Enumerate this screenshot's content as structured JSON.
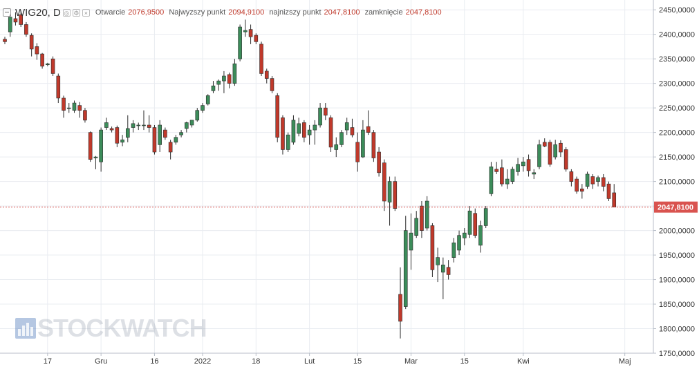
{
  "header": {
    "symbol": "WIG20, D",
    "open_label": "Otwarcie",
    "open_value": "2076,9500",
    "high_label": "Najwyzszy punkt",
    "high_value": "2094,9100",
    "low_label": "najnizszy punkt",
    "low_value": "2047,8100",
    "close_label": "zamknięcie",
    "close_value": "2047,8100"
  },
  "watermark": {
    "text": "STOCKWATCH"
  },
  "colors": {
    "up": "#3c8c5a",
    "down": "#c0392b",
    "last_price": "#d9534f",
    "grid": "#e9ecf1"
  },
  "chart_data": {
    "type": "candlestick",
    "ylim": [
      1750,
      2470
    ],
    "y_ticks": [
      "1750,0000",
      "1800,0000",
      "1850,0000",
      "1900,0000",
      "1950,0000",
      "2000,0000",
      "2050,0000",
      "2100,0000",
      "2150,0000",
      "2200,0000",
      "2250,0000",
      "2300,0000",
      "2350,0000",
      "2400,0000",
      "2450,0000"
    ],
    "y_tick_values": [
      1750,
      1800,
      1850,
      1900,
      1950,
      2000,
      2050,
      2100,
      2150,
      2200,
      2250,
      2300,
      2350,
      2400,
      2450
    ],
    "x_labels": [
      "17",
      "Gru",
      "16",
      "2022",
      "18",
      "Lut",
      "15",
      "Mar",
      "15",
      "Kwi",
      "Maj"
    ],
    "x_label_index": [
      8,
      18,
      28,
      37,
      47,
      57,
      66,
      76,
      86,
      97,
      116
    ],
    "last_price": 2047.81,
    "last_price_label": "2047,8100",
    "candles": [
      {
        "o": 2390,
        "h": 2395,
        "l": 2380,
        "c": 2385
      },
      {
        "o": 2405,
        "h": 2440,
        "l": 2395,
        "c": 2435
      },
      {
        "o": 2432,
        "h": 2445,
        "l": 2418,
        "c": 2425
      },
      {
        "o": 2440,
        "h": 2448,
        "l": 2415,
        "c": 2420
      },
      {
        "o": 2420,
        "h": 2425,
        "l": 2395,
        "c": 2400
      },
      {
        "o": 2398,
        "h": 2402,
        "l": 2355,
        "c": 2370
      },
      {
        "o": 2375,
        "h": 2382,
        "l": 2348,
        "c": 2360
      },
      {
        "o": 2360,
        "h": 2362,
        "l": 2330,
        "c": 2335
      },
      {
        "o": 2338,
        "h": 2342,
        "l": 2335,
        "c": 2340
      },
      {
        "o": 2350,
        "h": 2355,
        "l": 2315,
        "c": 2320
      },
      {
        "o": 2315,
        "h": 2320,
        "l": 2260,
        "c": 2270
      },
      {
        "o": 2270,
        "h": 2275,
        "l": 2230,
        "c": 2245
      },
      {
        "o": 2250,
        "h": 2260,
        "l": 2240,
        "c": 2250
      },
      {
        "o": 2245,
        "h": 2265,
        "l": 2240,
        "c": 2260
      },
      {
        "o": 2255,
        "h": 2262,
        "l": 2230,
        "c": 2245
      },
      {
        "o": 2245,
        "h": 2250,
        "l": 2220,
        "c": 2225
      },
      {
        "o": 2200,
        "h": 2202,
        "l": 2140,
        "c": 2145
      },
      {
        "o": 2148,
        "h": 2152,
        "l": 2125,
        "c": 2150
      },
      {
        "o": 2140,
        "h": 2210,
        "l": 2120,
        "c": 2205
      },
      {
        "o": 2210,
        "h": 2230,
        "l": 2205,
        "c": 2220
      },
      {
        "o": 2208,
        "h": 2212,
        "l": 2200,
        "c": 2205
      },
      {
        "o": 2210,
        "h": 2214,
        "l": 2170,
        "c": 2178
      },
      {
        "o": 2180,
        "h": 2195,
        "l": 2172,
        "c": 2185
      },
      {
        "o": 2190,
        "h": 2235,
        "l": 2180,
        "c": 2208
      },
      {
        "o": 2210,
        "h": 2225,
        "l": 2200,
        "c": 2218
      },
      {
        "o": 2215,
        "h": 2220,
        "l": 2205,
        "c": 2215
      },
      {
        "o": 2215,
        "h": 2245,
        "l": 2205,
        "c": 2215
      },
      {
        "o": 2215,
        "h": 2235,
        "l": 2200,
        "c": 2210
      },
      {
        "o": 2210,
        "h": 2215,
        "l": 2155,
        "c": 2160
      },
      {
        "o": 2175,
        "h": 2225,
        "l": 2160,
        "c": 2215
      },
      {
        "o": 2205,
        "h": 2210,
        "l": 2185,
        "c": 2190
      },
      {
        "o": 2180,
        "h": 2185,
        "l": 2145,
        "c": 2160
      },
      {
        "o": 2180,
        "h": 2195,
        "l": 2175,
        "c": 2190
      },
      {
        "o": 2195,
        "h": 2205,
        "l": 2190,
        "c": 2200
      },
      {
        "o": 2208,
        "h": 2222,
        "l": 2200,
        "c": 2220
      },
      {
        "o": 2215,
        "h": 2225,
        "l": 2210,
        "c": 2225
      },
      {
        "o": 2225,
        "h": 2250,
        "l": 2222,
        "c": 2245
      },
      {
        "o": 2245,
        "h": 2260,
        "l": 2240,
        "c": 2255
      },
      {
        "o": 2258,
        "h": 2278,
        "l": 2255,
        "c": 2275
      },
      {
        "o": 2285,
        "h": 2305,
        "l": 2280,
        "c": 2295
      },
      {
        "o": 2298,
        "h": 2308,
        "l": 2285,
        "c": 2305
      },
      {
        "o": 2305,
        "h": 2325,
        "l": 2280,
        "c": 2315
      },
      {
        "o": 2318,
        "h": 2322,
        "l": 2290,
        "c": 2300
      },
      {
        "o": 2300,
        "h": 2350,
        "l": 2295,
        "c": 2340
      },
      {
        "o": 2350,
        "h": 2420,
        "l": 2345,
        "c": 2415
      },
      {
        "o": 2405,
        "h": 2430,
        "l": 2395,
        "c": 2408
      },
      {
        "o": 2410,
        "h": 2420,
        "l": 2380,
        "c": 2395
      },
      {
        "o": 2398,
        "h": 2402,
        "l": 2380,
        "c": 2385
      },
      {
        "o": 2380,
        "h": 2385,
        "l": 2315,
        "c": 2320
      },
      {
        "o": 2325,
        "h": 2330,
        "l": 2300,
        "c": 2310
      },
      {
        "o": 2310,
        "h": 2315,
        "l": 2280,
        "c": 2285
      },
      {
        "o": 2275,
        "h": 2280,
        "l": 2180,
        "c": 2190
      },
      {
        "o": 2230,
        "h": 2235,
        "l": 2155,
        "c": 2165
      },
      {
        "o": 2165,
        "h": 2200,
        "l": 2160,
        "c": 2195
      },
      {
        "o": 2180,
        "h": 2235,
        "l": 2175,
        "c": 2225
      },
      {
        "o": 2198,
        "h": 2230,
        "l": 2192,
        "c": 2218
      },
      {
        "o": 2220,
        "h": 2225,
        "l": 2180,
        "c": 2190
      },
      {
        "o": 2195,
        "h": 2215,
        "l": 2175,
        "c": 2205
      },
      {
        "o": 2205,
        "h": 2225,
        "l": 2175,
        "c": 2215
      },
      {
        "o": 2215,
        "h": 2260,
        "l": 2210,
        "c": 2250
      },
      {
        "o": 2250,
        "h": 2260,
        "l": 2225,
        "c": 2235
      },
      {
        "o": 2230,
        "h": 2235,
        "l": 2160,
        "c": 2170
      },
      {
        "o": 2165,
        "h": 2190,
        "l": 2150,
        "c": 2175
      },
      {
        "o": 2175,
        "h": 2205,
        "l": 2170,
        "c": 2200
      },
      {
        "o": 2205,
        "h": 2230,
        "l": 2195,
        "c": 2220
      },
      {
        "o": 2210,
        "h": 2228,
        "l": 2190,
        "c": 2195
      },
      {
        "o": 2180,
        "h": 2200,
        "l": 2120,
        "c": 2140
      },
      {
        "o": 2150,
        "h": 2225,
        "l": 2148,
        "c": 2205
      },
      {
        "o": 2212,
        "h": 2245,
        "l": 2195,
        "c": 2200
      },
      {
        "o": 2200,
        "h": 2205,
        "l": 2140,
        "c": 2148
      },
      {
        "o": 2160,
        "h": 2170,
        "l": 2110,
        "c": 2118
      },
      {
        "o": 2138,
        "h": 2145,
        "l": 2040,
        "c": 2060
      },
      {
        "o": 2058,
        "h": 2110,
        "l": 2010,
        "c": 2100
      },
      {
        "o": 2100,
        "h": 2110,
        "l": 2040,
        "c": 2045
      },
      {
        "o": 1870,
        "h": 1925,
        "l": 1780,
        "c": 1815
      },
      {
        "o": 1845,
        "h": 2030,
        "l": 1840,
        "c": 2000
      },
      {
        "o": 1960,
        "h": 2035,
        "l": 1920,
        "c": 1995
      },
      {
        "o": 1990,
        "h": 2040,
        "l": 1985,
        "c": 2025
      },
      {
        "o": 2050,
        "h": 2060,
        "l": 1985,
        "c": 2000
      },
      {
        "o": 2005,
        "h": 2070,
        "l": 2000,
        "c": 2060
      },
      {
        "o": 2010,
        "h": 2015,
        "l": 1905,
        "c": 1920
      },
      {
        "o": 1930,
        "h": 1965,
        "l": 1895,
        "c": 1945
      },
      {
        "o": 1915,
        "h": 1945,
        "l": 1860,
        "c": 1930
      },
      {
        "o": 1925,
        "h": 1940,
        "l": 1900,
        "c": 1910
      },
      {
        "o": 1945,
        "h": 1985,
        "l": 1935,
        "c": 1975
      },
      {
        "o": 1960,
        "h": 2000,
        "l": 1950,
        "c": 1990
      },
      {
        "o": 1985,
        "h": 2005,
        "l": 1970,
        "c": 1995
      },
      {
        "o": 1992,
        "h": 2050,
        "l": 1985,
        "c": 2040
      },
      {
        "o": 2035,
        "h": 2045,
        "l": 1985,
        "c": 1990
      },
      {
        "o": 1970,
        "h": 2020,
        "l": 1955,
        "c": 2010
      },
      {
        "o": 2010,
        "h": 2050,
        "l": 2005,
        "c": 2045
      },
      {
        "o": 2075,
        "h": 2140,
        "l": 2070,
        "c": 2130
      },
      {
        "o": 2125,
        "h": 2140,
        "l": 2115,
        "c": 2120
      },
      {
        "o": 2128,
        "h": 2145,
        "l": 2090,
        "c": 2095
      },
      {
        "o": 2095,
        "h": 2125,
        "l": 2085,
        "c": 2105
      },
      {
        "o": 2100,
        "h": 2130,
        "l": 2095,
        "c": 2125
      },
      {
        "o": 2120,
        "h": 2148,
        "l": 2112,
        "c": 2135
      },
      {
        "o": 2132,
        "h": 2150,
        "l": 2120,
        "c": 2140
      },
      {
        "o": 2145,
        "h": 2155,
        "l": 2110,
        "c": 2122
      },
      {
        "o": 2115,
        "h": 2125,
        "l": 2105,
        "c": 2118
      },
      {
        "o": 2130,
        "h": 2185,
        "l": 2125,
        "c": 2175
      },
      {
        "o": 2180,
        "h": 2188,
        "l": 2170,
        "c": 2172
      },
      {
        "o": 2180,
        "h": 2185,
        "l": 2130,
        "c": 2135
      },
      {
        "o": 2150,
        "h": 2185,
        "l": 2145,
        "c": 2175
      },
      {
        "o": 2178,
        "h": 2184,
        "l": 2150,
        "c": 2160
      },
      {
        "o": 2165,
        "h": 2170,
        "l": 2120,
        "c": 2125
      },
      {
        "o": 2120,
        "h": 2125,
        "l": 2090,
        "c": 2100
      },
      {
        "o": 2105,
        "h": 2110,
        "l": 2075,
        "c": 2080
      },
      {
        "o": 2085,
        "h": 2095,
        "l": 2065,
        "c": 2080
      },
      {
        "o": 2090,
        "h": 2120,
        "l": 2085,
        "c": 2115
      },
      {
        "o": 2110,
        "h": 2115,
        "l": 2085,
        "c": 2095
      },
      {
        "o": 2100,
        "h": 2112,
        "l": 2090,
        "c": 2108
      },
      {
        "o": 2108,
        "h": 2115,
        "l": 2080,
        "c": 2090
      },
      {
        "o": 2095,
        "h": 2100,
        "l": 2060,
        "c": 2065
      },
      {
        "o": 2076.95,
        "h": 2094.91,
        "l": 2047.81,
        "c": 2047.81
      }
    ]
  }
}
